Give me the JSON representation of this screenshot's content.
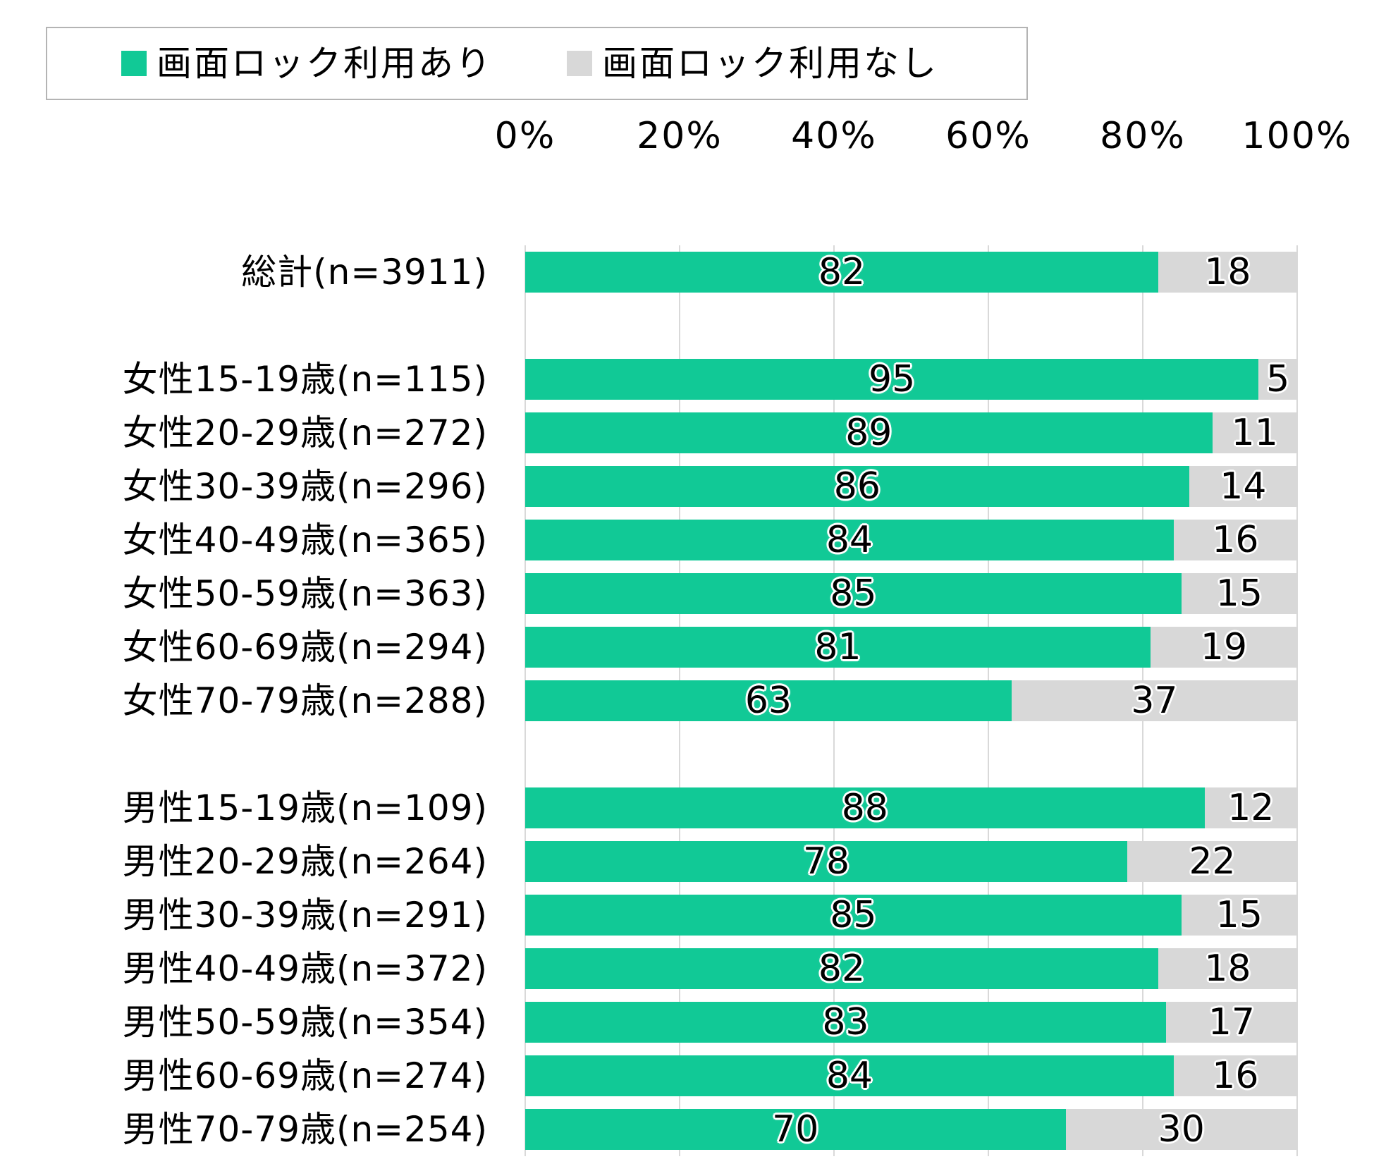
{
  "legend": {
    "entries": [
      {
        "label": "画面ロック利用あり",
        "color": "#11c996"
      },
      {
        "label": "画面ロック利用なし",
        "color": "#d8d8d8"
      }
    ],
    "position": "top"
  },
  "chart_data": {
    "type": "bar",
    "orientation": "horizontal",
    "stacked": true,
    "unit": "%",
    "title": "",
    "xlabel": "",
    "ylabel": "",
    "x_range": [
      0,
      100
    ],
    "x_ticks": [
      "0%",
      "20%",
      "40%",
      "60%",
      "80%",
      "100%"
    ],
    "grid": true,
    "legend_position": "top",
    "series_names": [
      "画面ロック利用あり",
      "画面ロック利用なし"
    ],
    "colors": {
      "series": [
        "#11c996",
        "#d8d8d8"
      ],
      "gridline": "#d9d9d9",
      "value_text": "#000000",
      "value_outline": "#ffffff"
    },
    "rows": [
      {
        "label": "総計(n=3911)",
        "yes": 82,
        "no": 18
      },
      {
        "spacer": true
      },
      {
        "label": "女性15-19歳(n=115)",
        "yes": 95,
        "no": 5
      },
      {
        "label": "女性20-29歳(n=272)",
        "yes": 89,
        "no": 11
      },
      {
        "label": "女性30-39歳(n=296)",
        "yes": 86,
        "no": 14
      },
      {
        "label": "女性40-49歳(n=365)",
        "yes": 84,
        "no": 16
      },
      {
        "label": "女性50-59歳(n=363)",
        "yes": 85,
        "no": 15
      },
      {
        "label": "女性60-69歳(n=294)",
        "yes": 81,
        "no": 19
      },
      {
        "label": "女性70-79歳(n=288)",
        "yes": 63,
        "no": 37
      },
      {
        "spacer": true
      },
      {
        "label": "男性15-19歳(n=109)",
        "yes": 88,
        "no": 12
      },
      {
        "label": "男性20-29歳(n=264)",
        "yes": 78,
        "no": 22
      },
      {
        "label": "男性30-39歳(n=291)",
        "yes": 85,
        "no": 15
      },
      {
        "label": "男性40-49歳(n=372)",
        "yes": 82,
        "no": 18
      },
      {
        "label": "男性50-59歳(n=354)",
        "yes": 83,
        "no": 17
      },
      {
        "label": "男性60-69歳(n=274)",
        "yes": 84,
        "no": 16
      },
      {
        "label": "男性70-79歳(n=254)",
        "yes": 70,
        "no": 30
      }
    ]
  }
}
